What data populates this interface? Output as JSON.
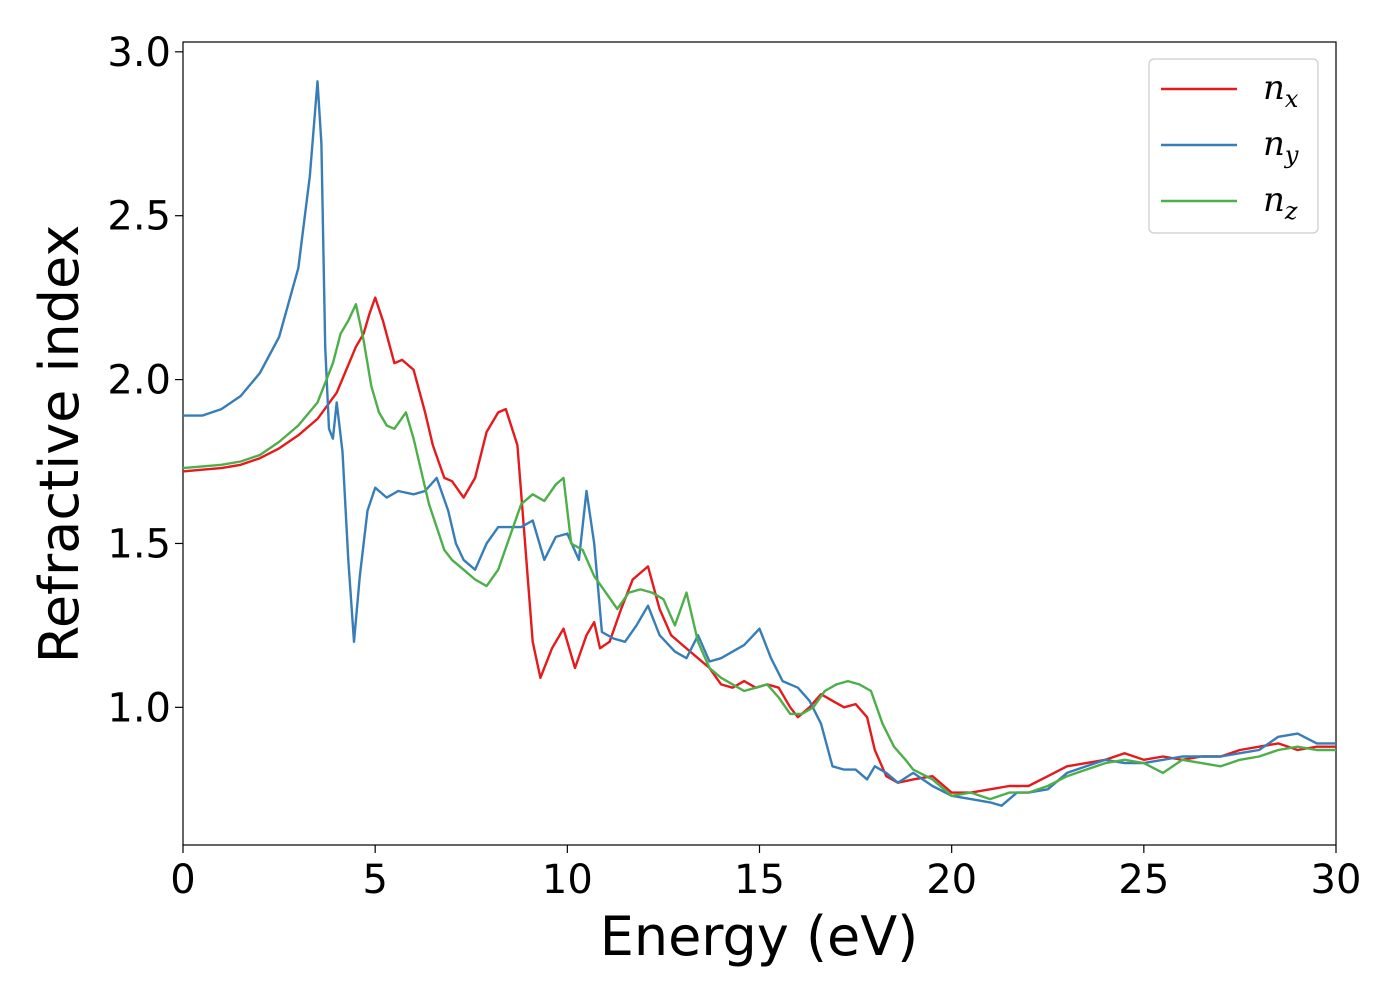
{
  "chart_data": {
    "type": "line",
    "title": "",
    "xlabel": "Energy (eV)",
    "ylabel": "Refractive index",
    "xlim": [
      0,
      30
    ],
    "ylim": [
      0.58,
      3.03
    ],
    "xticks": [
      0,
      5,
      10,
      15,
      20,
      25,
      30
    ],
    "yticks": [
      1.0,
      1.5,
      2.0,
      2.5,
      3.0
    ],
    "xtick_labels": [
      "0",
      "5",
      "10",
      "15",
      "20",
      "25",
      "30"
    ],
    "ytick_labels": [
      "1.0",
      "1.5",
      "2.0",
      "2.5",
      "3.0"
    ],
    "grid": false,
    "legend_position": "top-right",
    "series": [
      {
        "name": "n_x",
        "label_base": "n",
        "label_sub": "x",
        "color": "#e41a1c",
        "points": [
          [
            0,
            1.72
          ],
          [
            0.5,
            1.725
          ],
          [
            1,
            1.73
          ],
          [
            1.5,
            1.74
          ],
          [
            2,
            1.76
          ],
          [
            2.5,
            1.79
          ],
          [
            3,
            1.83
          ],
          [
            3.5,
            1.88
          ],
          [
            4,
            1.96
          ],
          [
            4.5,
            2.1
          ],
          [
            4.7,
            2.14
          ],
          [
            4.85,
            2.2
          ],
          [
            5.0,
            2.25
          ],
          [
            5.2,
            2.18
          ],
          [
            5.5,
            2.05
          ],
          [
            5.7,
            2.06
          ],
          [
            6.0,
            2.03
          ],
          [
            6.3,
            1.9
          ],
          [
            6.5,
            1.8
          ],
          [
            6.8,
            1.7
          ],
          [
            7.0,
            1.69
          ],
          [
            7.3,
            1.64
          ],
          [
            7.6,
            1.7
          ],
          [
            7.9,
            1.84
          ],
          [
            8.2,
            1.9
          ],
          [
            8.4,
            1.91
          ],
          [
            8.7,
            1.8
          ],
          [
            8.9,
            1.5
          ],
          [
            9.1,
            1.2
          ],
          [
            9.3,
            1.09
          ],
          [
            9.6,
            1.18
          ],
          [
            9.9,
            1.24
          ],
          [
            10.2,
            1.12
          ],
          [
            10.5,
            1.22
          ],
          [
            10.7,
            1.26
          ],
          [
            10.85,
            1.18
          ],
          [
            11.1,
            1.2
          ],
          [
            11.4,
            1.3
          ],
          [
            11.7,
            1.39
          ],
          [
            12.1,
            1.43
          ],
          [
            12.4,
            1.3
          ],
          [
            12.7,
            1.22
          ],
          [
            13.0,
            1.19
          ],
          [
            13.4,
            1.15
          ],
          [
            13.7,
            1.12
          ],
          [
            14.0,
            1.07
          ],
          [
            14.3,
            1.06
          ],
          [
            14.6,
            1.08
          ],
          [
            14.9,
            1.06
          ],
          [
            15.2,
            1.07
          ],
          [
            15.5,
            1.06
          ],
          [
            15.8,
            1.0
          ],
          [
            16.0,
            0.97
          ],
          [
            16.3,
            1.0
          ],
          [
            16.6,
            1.04
          ],
          [
            16.9,
            1.02
          ],
          [
            17.2,
            1.0
          ],
          [
            17.5,
            1.01
          ],
          [
            17.8,
            0.97
          ],
          [
            18.0,
            0.87
          ],
          [
            18.3,
            0.79
          ],
          [
            18.6,
            0.77
          ],
          [
            19.0,
            0.78
          ],
          [
            19.5,
            0.79
          ],
          [
            20.0,
            0.74
          ],
          [
            20.5,
            0.74
          ],
          [
            21.0,
            0.75
          ],
          [
            21.5,
            0.76
          ],
          [
            22.0,
            0.76
          ],
          [
            22.5,
            0.79
          ],
          [
            23.0,
            0.82
          ],
          [
            23.5,
            0.83
          ],
          [
            24.0,
            0.84
          ],
          [
            24.5,
            0.86
          ],
          [
            25.0,
            0.84
          ],
          [
            25.5,
            0.85
          ],
          [
            26.0,
            0.84
          ],
          [
            26.5,
            0.85
          ],
          [
            27.0,
            0.85
          ],
          [
            27.5,
            0.87
          ],
          [
            28.0,
            0.88
          ],
          [
            28.5,
            0.89
          ],
          [
            29.0,
            0.87
          ],
          [
            29.5,
            0.88
          ],
          [
            30.0,
            0.88
          ]
        ]
      },
      {
        "name": "n_y",
        "label_base": "n",
        "label_sub": "y",
        "color": "#377eb8",
        "points": [
          [
            0,
            1.89
          ],
          [
            0.5,
            1.89
          ],
          [
            1,
            1.91
          ],
          [
            1.5,
            1.95
          ],
          [
            2,
            2.02
          ],
          [
            2.5,
            2.13
          ],
          [
            3.0,
            2.34
          ],
          [
            3.3,
            2.62
          ],
          [
            3.5,
            2.91
          ],
          [
            3.6,
            2.72
          ],
          [
            3.7,
            2.1
          ],
          [
            3.8,
            1.85
          ],
          [
            3.9,
            1.82
          ],
          [
            4.0,
            1.93
          ],
          [
            4.15,
            1.78
          ],
          [
            4.3,
            1.45
          ],
          [
            4.45,
            1.2
          ],
          [
            4.6,
            1.4
          ],
          [
            4.8,
            1.6
          ],
          [
            5.0,
            1.67
          ],
          [
            5.3,
            1.64
          ],
          [
            5.6,
            1.66
          ],
          [
            6.0,
            1.65
          ],
          [
            6.3,
            1.66
          ],
          [
            6.6,
            1.7
          ],
          [
            6.9,
            1.6
          ],
          [
            7.1,
            1.5
          ],
          [
            7.3,
            1.45
          ],
          [
            7.6,
            1.42
          ],
          [
            7.9,
            1.5
          ],
          [
            8.2,
            1.55
          ],
          [
            8.5,
            1.55
          ],
          [
            8.8,
            1.55
          ],
          [
            9.1,
            1.57
          ],
          [
            9.4,
            1.45
          ],
          [
            9.7,
            1.52
          ],
          [
            10.0,
            1.53
          ],
          [
            10.3,
            1.45
          ],
          [
            10.5,
            1.66
          ],
          [
            10.7,
            1.5
          ],
          [
            10.9,
            1.23
          ],
          [
            11.2,
            1.21
          ],
          [
            11.5,
            1.2
          ],
          [
            11.8,
            1.25
          ],
          [
            12.1,
            1.31
          ],
          [
            12.4,
            1.22
          ],
          [
            12.8,
            1.17
          ],
          [
            13.1,
            1.15
          ],
          [
            13.4,
            1.22
          ],
          [
            13.7,
            1.14
          ],
          [
            14.0,
            1.15
          ],
          [
            14.3,
            1.17
          ],
          [
            14.6,
            1.19
          ],
          [
            15.0,
            1.24
          ],
          [
            15.3,
            1.15
          ],
          [
            15.6,
            1.08
          ],
          [
            16.0,
            1.06
          ],
          [
            16.3,
            1.02
          ],
          [
            16.6,
            0.95
          ],
          [
            16.9,
            0.82
          ],
          [
            17.2,
            0.81
          ],
          [
            17.5,
            0.81
          ],
          [
            17.8,
            0.78
          ],
          [
            18.0,
            0.82
          ],
          [
            18.3,
            0.8
          ],
          [
            18.6,
            0.77
          ],
          [
            19.0,
            0.8
          ],
          [
            19.5,
            0.76
          ],
          [
            20.0,
            0.73
          ],
          [
            20.5,
            0.72
          ],
          [
            21.0,
            0.71
          ],
          [
            21.3,
            0.7
          ],
          [
            21.7,
            0.74
          ],
          [
            22.0,
            0.74
          ],
          [
            22.5,
            0.75
          ],
          [
            23.0,
            0.8
          ],
          [
            23.5,
            0.82
          ],
          [
            24.0,
            0.84
          ],
          [
            24.5,
            0.83
          ],
          [
            25.0,
            0.83
          ],
          [
            25.5,
            0.84
          ],
          [
            26.0,
            0.85
          ],
          [
            26.5,
            0.85
          ],
          [
            27.0,
            0.85
          ],
          [
            27.5,
            0.86
          ],
          [
            28.0,
            0.87
          ],
          [
            28.5,
            0.91
          ],
          [
            29.0,
            0.92
          ],
          [
            29.5,
            0.89
          ],
          [
            30.0,
            0.89
          ]
        ]
      },
      {
        "name": "n_z",
        "label_base": "n",
        "label_sub": "z",
        "color": "#4daf4a",
        "points": [
          [
            0,
            1.73
          ],
          [
            0.5,
            1.735
          ],
          [
            1,
            1.74
          ],
          [
            1.5,
            1.75
          ],
          [
            2,
            1.77
          ],
          [
            2.5,
            1.81
          ],
          [
            3,
            1.86
          ],
          [
            3.5,
            1.93
          ],
          [
            3.9,
            2.05
          ],
          [
            4.1,
            2.14
          ],
          [
            4.3,
            2.18
          ],
          [
            4.5,
            2.23
          ],
          [
            4.7,
            2.12
          ],
          [
            4.9,
            1.98
          ],
          [
            5.1,
            1.9
          ],
          [
            5.3,
            1.86
          ],
          [
            5.5,
            1.85
          ],
          [
            5.8,
            1.9
          ],
          [
            6.0,
            1.82
          ],
          [
            6.2,
            1.72
          ],
          [
            6.4,
            1.62
          ],
          [
            6.6,
            1.55
          ],
          [
            6.8,
            1.48
          ],
          [
            7.0,
            1.45
          ],
          [
            7.3,
            1.42
          ],
          [
            7.6,
            1.39
          ],
          [
            7.9,
            1.37
          ],
          [
            8.2,
            1.42
          ],
          [
            8.5,
            1.52
          ],
          [
            8.8,
            1.62
          ],
          [
            9.1,
            1.65
          ],
          [
            9.4,
            1.63
          ],
          [
            9.7,
            1.68
          ],
          [
            9.9,
            1.7
          ],
          [
            10.1,
            1.5
          ],
          [
            10.4,
            1.48
          ],
          [
            10.7,
            1.4
          ],
          [
            11.0,
            1.35
          ],
          [
            11.3,
            1.3
          ],
          [
            11.6,
            1.35
          ],
          [
            11.9,
            1.36
          ],
          [
            12.2,
            1.35
          ],
          [
            12.5,
            1.33
          ],
          [
            12.8,
            1.25
          ],
          [
            13.1,
            1.35
          ],
          [
            13.4,
            1.2
          ],
          [
            13.7,
            1.12
          ],
          [
            14.0,
            1.09
          ],
          [
            14.3,
            1.07
          ],
          [
            14.6,
            1.05
          ],
          [
            14.9,
            1.06
          ],
          [
            15.2,
            1.07
          ],
          [
            15.5,
            1.03
          ],
          [
            15.8,
            0.98
          ],
          [
            16.1,
            0.98
          ],
          [
            16.4,
            1.0
          ],
          [
            16.7,
            1.05
          ],
          [
            17.0,
            1.07
          ],
          [
            17.3,
            1.08
          ],
          [
            17.6,
            1.07
          ],
          [
            17.9,
            1.05
          ],
          [
            18.2,
            0.95
          ],
          [
            18.5,
            0.88
          ],
          [
            18.8,
            0.84
          ],
          [
            19.0,
            0.81
          ],
          [
            19.5,
            0.78
          ],
          [
            20.0,
            0.73
          ],
          [
            20.5,
            0.74
          ],
          [
            21.0,
            0.72
          ],
          [
            21.5,
            0.74
          ],
          [
            22.0,
            0.74
          ],
          [
            22.5,
            0.76
          ],
          [
            23.0,
            0.79
          ],
          [
            23.5,
            0.81
          ],
          [
            24.0,
            0.83
          ],
          [
            24.5,
            0.84
          ],
          [
            25.0,
            0.83
          ],
          [
            25.5,
            0.8
          ],
          [
            26.0,
            0.84
          ],
          [
            26.5,
            0.83
          ],
          [
            27.0,
            0.82
          ],
          [
            27.5,
            0.84
          ],
          [
            28.0,
            0.85
          ],
          [
            28.5,
            0.87
          ],
          [
            29.0,
            0.88
          ],
          [
            29.5,
            0.87
          ],
          [
            30.0,
            0.87
          ]
        ]
      }
    ]
  }
}
